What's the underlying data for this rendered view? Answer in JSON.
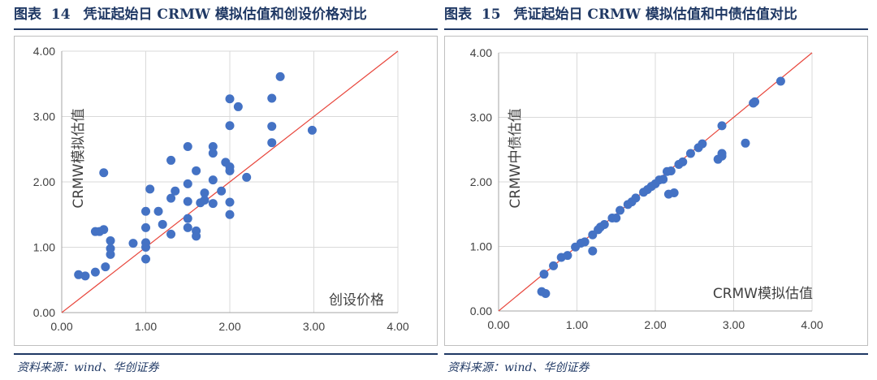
{
  "left": {
    "title_label": "图表",
    "title_number": "14",
    "title_text": "凭证起始日 CRMW 模拟估值和创设价格对比",
    "source": "资料来源：wind、华创证券"
  },
  "right": {
    "title_label": "图表",
    "title_number": "15",
    "title_text": "凭证起始日 CRMW 模拟估值和中债估值对比",
    "source": "资料来源：wind、华创证券"
  },
  "colors": {
    "point": "#4472c4",
    "diagonal": "#e8463c",
    "grid": "#d9d9d9",
    "title": "#1f3864"
  },
  "chart_data": [
    {
      "type": "scatter",
      "title": "",
      "xlabel": "创设价格",
      "ylabel": "CRMW模拟估值",
      "xlim": [
        0,
        4
      ],
      "ylim": [
        0,
        4
      ],
      "xticks": [
        "0.00",
        "1.00",
        "2.00",
        "3.00",
        "4.00"
      ],
      "yticks": [
        "0.00",
        "1.00",
        "2.00",
        "3.00",
        "4.00"
      ],
      "grid": true,
      "reference_line": "y = x",
      "points": [
        [
          0.2,
          0.58
        ],
        [
          0.28,
          0.56
        ],
        [
          0.4,
          0.62
        ],
        [
          0.4,
          1.24
        ],
        [
          0.45,
          1.24
        ],
        [
          0.5,
          1.27
        ],
        [
          0.5,
          2.14
        ],
        [
          0.52,
          0.7
        ],
        [
          0.58,
          1.1
        ],
        [
          0.58,
          0.98
        ],
        [
          0.58,
          0.89
        ],
        [
          0.85,
          1.06
        ],
        [
          1.0,
          0.82
        ],
        [
          1.0,
          1.0
        ],
        [
          1.0,
          1.07
        ],
        [
          1.0,
          1.3
        ],
        [
          1.0,
          1.55
        ],
        [
          1.05,
          1.89
        ],
        [
          1.15,
          1.55
        ],
        [
          1.2,
          1.35
        ],
        [
          1.3,
          1.2
        ],
        [
          1.3,
          1.75
        ],
        [
          1.3,
          2.33
        ],
        [
          1.35,
          1.86
        ],
        [
          1.5,
          1.3
        ],
        [
          1.5,
          1.44
        ],
        [
          1.5,
          1.7
        ],
        [
          1.5,
          1.97
        ],
        [
          1.5,
          2.54
        ],
        [
          1.6,
          1.25
        ],
        [
          1.6,
          1.17
        ],
        [
          1.6,
          2.17
        ],
        [
          1.65,
          1.68
        ],
        [
          1.7,
          1.83
        ],
        [
          1.7,
          1.72
        ],
        [
          1.8,
          1.67
        ],
        [
          1.8,
          2.03
        ],
        [
          1.8,
          2.44
        ],
        [
          1.8,
          2.54
        ],
        [
          1.9,
          1.86
        ],
        [
          1.95,
          2.3
        ],
        [
          2.0,
          1.5
        ],
        [
          2.0,
          1.69
        ],
        [
          2.0,
          2.17
        ],
        [
          2.0,
          2.23
        ],
        [
          2.0,
          2.86
        ],
        [
          2.0,
          3.27
        ],
        [
          2.1,
          3.15
        ],
        [
          2.2,
          2.07
        ],
        [
          2.5,
          2.6
        ],
        [
          2.5,
          2.85
        ],
        [
          2.5,
          3.28
        ],
        [
          2.6,
          3.61
        ],
        [
          2.98,
          2.79
        ]
      ]
    },
    {
      "type": "scatter",
      "title": "",
      "xlabel": "CRMW模拟估值",
      "ylabel": "CRMW中债估值",
      "xlim": [
        0,
        4
      ],
      "ylim": [
        0,
        4
      ],
      "xticks": [
        "0.00",
        "1.00",
        "2.00",
        "3.00",
        "4.00"
      ],
      "yticks": [
        "0.00",
        "1.00",
        "2.00",
        "3.00",
        "4.00"
      ],
      "grid": true,
      "reference_line": "y = x",
      "points": [
        [
          0.55,
          0.3
        ],
        [
          0.6,
          0.27
        ],
        [
          0.58,
          0.57
        ],
        [
          0.7,
          0.7
        ],
        [
          0.8,
          0.83
        ],
        [
          0.88,
          0.86
        ],
        [
          0.98,
          0.99
        ],
        [
          1.05,
          1.05
        ],
        [
          1.1,
          1.07
        ],
        [
          1.2,
          0.93
        ],
        [
          1.2,
          1.18
        ],
        [
          1.27,
          1.26
        ],
        [
          1.3,
          1.3
        ],
        [
          1.35,
          1.34
        ],
        [
          1.45,
          1.44
        ],
        [
          1.5,
          1.44
        ],
        [
          1.55,
          1.56
        ],
        [
          1.65,
          1.65
        ],
        [
          1.7,
          1.69
        ],
        [
          1.75,
          1.75
        ],
        [
          1.85,
          1.84
        ],
        [
          1.9,
          1.88
        ],
        [
          1.95,
          1.93
        ],
        [
          2.0,
          1.97
        ],
        [
          2.05,
          2.03
        ],
        [
          2.1,
          2.04
        ],
        [
          2.15,
          2.16
        ],
        [
          2.2,
          2.17
        ],
        [
          2.17,
          1.81
        ],
        [
          2.24,
          1.83
        ],
        [
          2.3,
          2.27
        ],
        [
          2.35,
          2.31
        ],
        [
          2.45,
          2.44
        ],
        [
          2.55,
          2.53
        ],
        [
          2.6,
          2.59
        ],
        [
          2.8,
          2.35
        ],
        [
          2.85,
          2.4
        ],
        [
          2.85,
          2.44
        ],
        [
          2.85,
          2.87
        ],
        [
          3.15,
          2.6
        ],
        [
          3.25,
          3.22
        ],
        [
          3.27,
          3.24
        ],
        [
          3.6,
          3.56
        ]
      ]
    }
  ]
}
